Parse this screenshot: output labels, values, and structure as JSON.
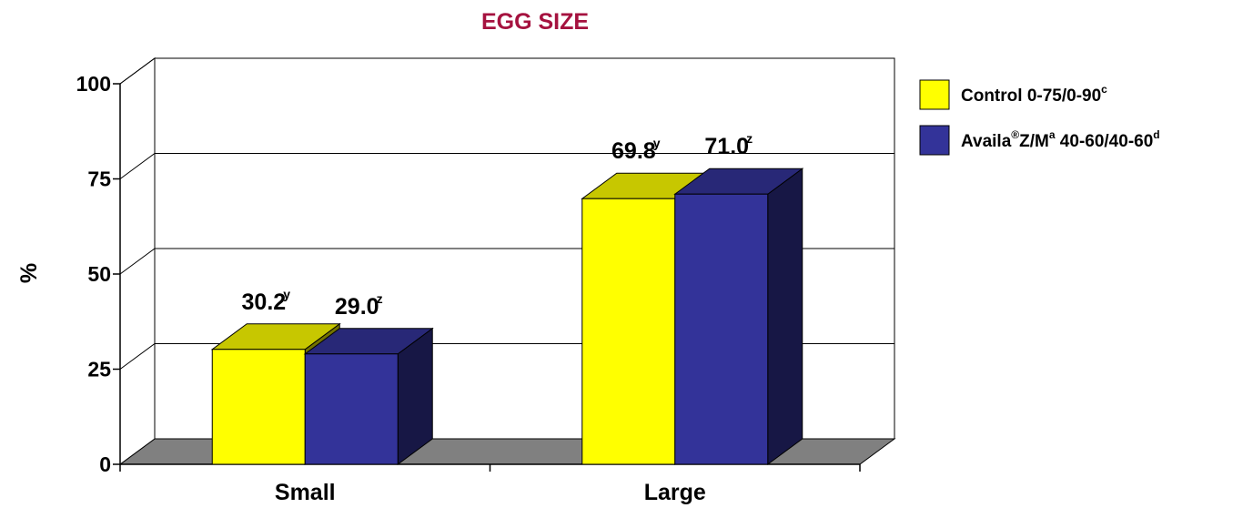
{
  "chart_data": {
    "type": "bar",
    "title": "EGG SIZE",
    "ylabel": "%",
    "xlabel": "",
    "ylim": [
      0,
      100
    ],
    "yticks": [
      0,
      25,
      50,
      75,
      100
    ],
    "grid": true,
    "categories": [
      "Small",
      "Large"
    ],
    "series": [
      {
        "name": "Control 0-75/0-90",
        "name_sup": "c",
        "color": "#ffff00",
        "values": [
          30.2,
          69.8
        ],
        "labels": [
          "30.2",
          "69.8"
        ],
        "label_sups": [
          "y",
          "y"
        ]
      },
      {
        "name_parts": [
          "Availa",
          "®",
          "Z/M",
          "a",
          " 40-60/40-60",
          "d"
        ],
        "color": "#333399",
        "values": [
          29.0,
          71.0
        ],
        "labels": [
          "29.0",
          "71.0"
        ],
        "label_sups": [
          "z",
          "z"
        ]
      }
    ],
    "legend_position": "right"
  }
}
